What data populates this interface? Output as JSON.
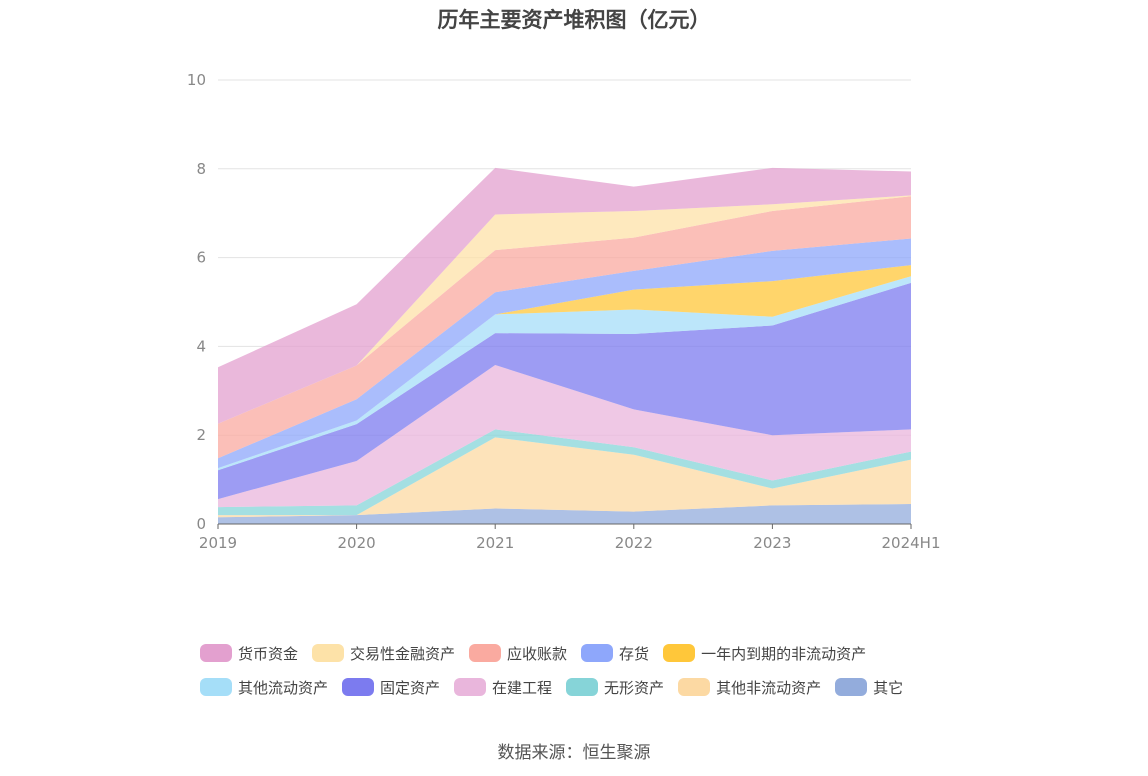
{
  "title": "历年主要资产堆积图（亿元）",
  "source": "数据来源：恒生聚源",
  "chart_data": {
    "type": "area",
    "stacked": true,
    "categories": [
      "2019",
      "2020",
      "2021",
      "2022",
      "2023",
      "2024H1"
    ],
    "ylim": [
      0,
      10
    ],
    "yticks": [
      0,
      2,
      4,
      6,
      8,
      10
    ],
    "grid": true,
    "legend_position": "bottom",
    "series": [
      {
        "name": "其它",
        "color": "#93acdc",
        "values": [
          0.15,
          0.2,
          0.35,
          0.28,
          0.42,
          0.45
        ]
      },
      {
        "name": "其他非流动资产",
        "color": "#fcd9a3",
        "values": [
          0.05,
          0.0,
          1.6,
          1.28,
          0.38,
          1.0
        ]
      },
      {
        "name": "无形资产",
        "color": "#86d4d8",
        "values": [
          0.18,
          0.22,
          0.18,
          0.17,
          0.18,
          0.18
        ]
      },
      {
        "name": "在建工程",
        "color": "#e9b6dc",
        "values": [
          0.18,
          1.0,
          1.45,
          0.85,
          1.02,
          0.5
        ]
      },
      {
        "name": "固定资产",
        "color": "#7c7bef",
        "values": [
          0.65,
          0.83,
          0.72,
          1.7,
          2.47,
          3.3
        ]
      },
      {
        "name": "其他流动资产",
        "color": "#a5def8",
        "values": [
          0.05,
          0.08,
          0.42,
          0.55,
          0.2,
          0.15
        ]
      },
      {
        "name": "一年内到期的非流动资产",
        "color": "#ffc73a",
        "values": [
          0.0,
          0.0,
          0.0,
          0.45,
          0.8,
          0.25
        ]
      },
      {
        "name": "存货",
        "color": "#8ea7fb",
        "values": [
          0.22,
          0.48,
          0.5,
          0.42,
          0.68,
          0.6
        ]
      },
      {
        "name": "应收账款",
        "color": "#faaaa0",
        "values": [
          0.78,
          0.76,
          0.95,
          0.75,
          0.9,
          0.95
        ]
      },
      {
        "name": "交易性金融资产",
        "color": "#fde2a8",
        "values": [
          0.0,
          0.0,
          0.8,
          0.6,
          0.15,
          0.02
        ]
      },
      {
        "name": "货币资金",
        "color": "#e3a0cf",
        "values": [
          1.27,
          1.38,
          1.05,
          0.55,
          0.82,
          0.54
        ]
      }
    ]
  },
  "legend": {
    "rows": [
      [
        "货币资金",
        "交易性金融资产",
        "应收账款",
        "存货",
        "一年内到期的非流动资产"
      ],
      [
        "其他流动资产",
        "固定资产",
        "在建工程",
        "无形资产",
        "其他非流动资产",
        "其它"
      ]
    ]
  }
}
